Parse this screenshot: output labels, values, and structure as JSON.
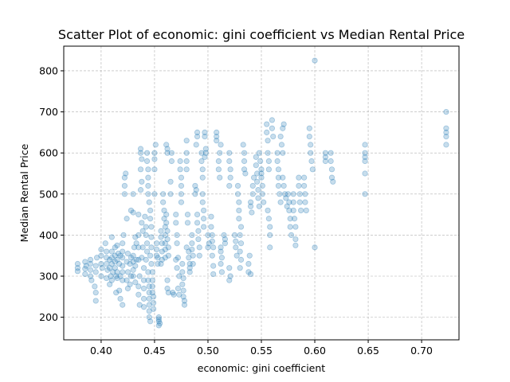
{
  "chart_data": {
    "type": "scatter",
    "title": "Scatter Plot of economic: gini coefficient vs Median Rental Price",
    "xlabel": "economic: gini coefficient",
    "ylabel": "Median Rental Price",
    "xlim": [
      0.365,
      0.735
    ],
    "ylim": [
      145,
      860
    ],
    "xticks": [
      0.4,
      0.45,
      0.5,
      0.55,
      0.6,
      0.65,
      0.7
    ],
    "xtick_labels": [
      "0.40",
      "0.45",
      "0.50",
      "0.55",
      "0.60",
      "0.65",
      "0.70"
    ],
    "yticks": [
      200,
      300,
      400,
      500,
      600,
      700,
      800
    ],
    "ytick_labels": [
      "200",
      "300",
      "400",
      "500",
      "600",
      "700",
      "800"
    ],
    "grid": true,
    "marker_color": "#1f77b4",
    "marker_alpha": 0.25,
    "points": [
      [
        0.378,
        330
      ],
      [
        0.378,
        320
      ],
      [
        0.378,
        312
      ],
      [
        0.385,
        335
      ],
      [
        0.385,
        318
      ],
      [
        0.385,
        305
      ],
      [
        0.386,
        325
      ],
      [
        0.39,
        340
      ],
      [
        0.39,
        315
      ],
      [
        0.39,
        300
      ],
      [
        0.391,
        290
      ],
      [
        0.39,
        330
      ],
      [
        0.395,
        310
      ],
      [
        0.395,
        325
      ],
      [
        0.394,
        275
      ],
      [
        0.395,
        260
      ],
      [
        0.395,
        240
      ],
      [
        0.396,
        345
      ],
      [
        0.4,
        330
      ],
      [
        0.4,
        350
      ],
      [
        0.4,
        300
      ],
      [
        0.401,
        320
      ],
      [
        0.4,
        365
      ],
      [
        0.405,
        345
      ],
      [
        0.405,
        330
      ],
      [
        0.406,
        315
      ],
      [
        0.405,
        295
      ],
      [
        0.404,
        380
      ],
      [
        0.405,
        360
      ],
      [
        0.408,
        320
      ],
      [
        0.408,
        340
      ],
      [
        0.409,
        300
      ],
      [
        0.408,
        280
      ],
      [
        0.41,
        345
      ],
      [
        0.41,
        330
      ],
      [
        0.41,
        360
      ],
      [
        0.411,
        310
      ],
      [
        0.41,
        290
      ],
      [
        0.41,
        395
      ],
      [
        0.413,
        335
      ],
      [
        0.413,
        320
      ],
      [
        0.413,
        350
      ],
      [
        0.414,
        300
      ],
      [
        0.413,
        370
      ],
      [
        0.414,
        260
      ],
      [
        0.415,
        340
      ],
      [
        0.415,
        310
      ],
      [
        0.415,
        295
      ],
      [
        0.415,
        375
      ],
      [
        0.416,
        355
      ],
      [
        0.417,
        330
      ],
      [
        0.418,
        350
      ],
      [
        0.418,
        300
      ],
      [
        0.418,
        245
      ],
      [
        0.417,
        265
      ],
      [
        0.42,
        345
      ],
      [
        0.42,
        325
      ],
      [
        0.42,
        310
      ],
      [
        0.42,
        290
      ],
      [
        0.42,
        230
      ],
      [
        0.42,
        380
      ],
      [
        0.421,
        400
      ],
      [
        0.42,
        360
      ],
      [
        0.422,
        520
      ],
      [
        0.422,
        540
      ],
      [
        0.422,
        500
      ],
      [
        0.423,
        550
      ],
      [
        0.424,
        335
      ],
      [
        0.425,
        310
      ],
      [
        0.424,
        290
      ],
      [
        0.425,
        355
      ],
      [
        0.425,
        270
      ],
      [
        0.424,
        440
      ],
      [
        0.427,
        330
      ],
      [
        0.428,
        345
      ],
      [
        0.428,
        300
      ],
      [
        0.427,
        280
      ],
      [
        0.428,
        460
      ],
      [
        0.43,
        335
      ],
      [
        0.43,
        315
      ],
      [
        0.43,
        350
      ],
      [
        0.43,
        300
      ],
      [
        0.431,
        370
      ],
      [
        0.43,
        455
      ],
      [
        0.43,
        500
      ],
      [
        0.432,
        325
      ],
      [
        0.433,
        340
      ],
      [
        0.432,
        395
      ],
      [
        0.433,
        380
      ],
      [
        0.432,
        285
      ],
      [
        0.435,
        450
      ],
      [
        0.435,
        400
      ],
      [
        0.435,
        370
      ],
      [
        0.435,
        340
      ],
      [
        0.436,
        300
      ],
      [
        0.435,
        275
      ],
      [
        0.435,
        255
      ],
      [
        0.436,
        230
      ],
      [
        0.437,
        610
      ],
      [
        0.437,
        600
      ],
      [
        0.438,
        585
      ],
      [
        0.437,
        560
      ],
      [
        0.438,
        530
      ],
      [
        0.437,
        510
      ],
      [
        0.438,
        430
      ],
      [
        0.439,
        410
      ],
      [
        0.439,
        370
      ],
      [
        0.438,
        345
      ],
      [
        0.44,
        320
      ],
      [
        0.44,
        290
      ],
      [
        0.44,
        270
      ],
      [
        0.44,
        245
      ],
      [
        0.44,
        225
      ],
      [
        0.441,
        445
      ],
      [
        0.442,
        420
      ],
      [
        0.442,
        400
      ],
      [
        0.443,
        380
      ],
      [
        0.443,
        360
      ],
      [
        0.442,
        340
      ],
      [
        0.444,
        310
      ],
      [
        0.444,
        290
      ],
      [
        0.445,
        275
      ],
      [
        0.445,
        260
      ],
      [
        0.445,
        245
      ],
      [
        0.445,
        230
      ],
      [
        0.445,
        215
      ],
      [
        0.445,
        200
      ],
      [
        0.446,
        190
      ],
      [
        0.443,
        600
      ],
      [
        0.443,
        580
      ],
      [
        0.444,
        560
      ],
      [
        0.444,
        540
      ],
      [
        0.444,
        520
      ],
      [
        0.444,
        500
      ],
      [
        0.445,
        480
      ],
      [
        0.446,
        460
      ],
      [
        0.446,
        440
      ],
      [
        0.447,
        420
      ],
      [
        0.447,
        395
      ],
      [
        0.447,
        370
      ],
      [
        0.446,
        350
      ],
      [
        0.447,
        330
      ],
      [
        0.448,
        310
      ],
      [
        0.448,
        290
      ],
      [
        0.448,
        275
      ],
      [
        0.448,
        260
      ],
      [
        0.449,
        250
      ],
      [
        0.449,
        235
      ],
      [
        0.449,
        220
      ],
      [
        0.45,
        600
      ],
      [
        0.45,
        585
      ],
      [
        0.45,
        560
      ],
      [
        0.45,
        500
      ],
      [
        0.451,
        620
      ],
      [
        0.452,
        380
      ],
      [
        0.452,
        365
      ],
      [
        0.453,
        345
      ],
      [
        0.453,
        330
      ],
      [
        0.452,
        350
      ],
      [
        0.454,
        200
      ],
      [
        0.454,
        195
      ],
      [
        0.454,
        190
      ],
      [
        0.455,
        185
      ],
      [
        0.454,
        180
      ],
      [
        0.456,
        410
      ],
      [
        0.456,
        395
      ],
      [
        0.457,
        380
      ],
      [
        0.457,
        360
      ],
      [
        0.457,
        340
      ],
      [
        0.456,
        330
      ],
      [
        0.458,
        500
      ],
      [
        0.458,
        480
      ],
      [
        0.459,
        460
      ],
      [
        0.459,
        440
      ],
      [
        0.46,
        420
      ],
      [
        0.46,
        400
      ],
      [
        0.46,
        380
      ],
      [
        0.46,
        365
      ],
      [
        0.46,
        345
      ],
      [
        0.461,
        450
      ],
      [
        0.461,
        430
      ],
      [
        0.462,
        410
      ],
      [
        0.462,
        390
      ],
      [
        0.463,
        370
      ],
      [
        0.463,
        350
      ],
      [
        0.462,
        290
      ],
      [
        0.462,
        270
      ],
      [
        0.463,
        260
      ],
      [
        0.461,
        620
      ],
      [
        0.462,
        600
      ],
      [
        0.462,
        610
      ],
      [
        0.465,
        500
      ],
      [
        0.465,
        530
      ],
      [
        0.466,
        580
      ],
      [
        0.466,
        600
      ],
      [
        0.467,
        260
      ],
      [
        0.468,
        255
      ],
      [
        0.47,
        450
      ],
      [
        0.47,
        430
      ],
      [
        0.471,
        400
      ],
      [
        0.471,
        380
      ],
      [
        0.47,
        340
      ],
      [
        0.471,
        320
      ],
      [
        0.472,
        345
      ],
      [
        0.472,
        270
      ],
      [
        0.473,
        255
      ],
      [
        0.473,
        300
      ],
      [
        0.474,
        580
      ],
      [
        0.474,
        560
      ],
      [
        0.475,
        540
      ],
      [
        0.475,
        520
      ],
      [
        0.475,
        500
      ],
      [
        0.475,
        480
      ],
      [
        0.476,
        330
      ],
      [
        0.476,
        310
      ],
      [
        0.477,
        295
      ],
      [
        0.476,
        280
      ],
      [
        0.477,
        265
      ],
      [
        0.477,
        250
      ],
      [
        0.478,
        240
      ],
      [
        0.478,
        230
      ],
      [
        0.48,
        630
      ],
      [
        0.48,
        600
      ],
      [
        0.48,
        580
      ],
      [
        0.48,
        560
      ],
      [
        0.481,
        450
      ],
      [
        0.481,
        430
      ],
      [
        0.48,
        370
      ],
      [
        0.482,
        360
      ],
      [
        0.482,
        345
      ],
      [
        0.483,
        330
      ],
      [
        0.483,
        320
      ],
      [
        0.483,
        310
      ],
      [
        0.485,
        380
      ],
      [
        0.485,
        365
      ],
      [
        0.486,
        350
      ],
      [
        0.486,
        330
      ],
      [
        0.485,
        400
      ],
      [
        0.488,
        500
      ],
      [
        0.488,
        520
      ],
      [
        0.489,
        510
      ],
      [
        0.489,
        620
      ],
      [
        0.49,
        640
      ],
      [
        0.49,
        650
      ],
      [
        0.49,
        450
      ],
      [
        0.49,
        430
      ],
      [
        0.491,
        410
      ],
      [
        0.491,
        390
      ],
      [
        0.492,
        370
      ],
      [
        0.492,
        350
      ],
      [
        0.494,
        600
      ],
      [
        0.494,
        580
      ],
      [
        0.495,
        560
      ],
      [
        0.495,
        540
      ],
      [
        0.495,
        500
      ],
      [
        0.495,
        480
      ],
      [
        0.496,
        460
      ],
      [
        0.496,
        440
      ],
      [
        0.496,
        420
      ],
      [
        0.497,
        650
      ],
      [
        0.497,
        640
      ],
      [
        0.498,
        610
      ],
      [
        0.498,
        600
      ],
      [
        0.497,
        590
      ],
      [
        0.5,
        370
      ],
      [
        0.5,
        400
      ],
      [
        0.501,
        380
      ],
      [
        0.503,
        445
      ],
      [
        0.503,
        420
      ],
      [
        0.504,
        400
      ],
      [
        0.504,
        385
      ],
      [
        0.505,
        370
      ],
      [
        0.504,
        350
      ],
      [
        0.505,
        325
      ],
      [
        0.505,
        305
      ],
      [
        0.508,
        650
      ],
      [
        0.508,
        640
      ],
      [
        0.508,
        630
      ],
      [
        0.51,
        560
      ],
      [
        0.51,
        580
      ],
      [
        0.511,
        600
      ],
      [
        0.512,
        620
      ],
      [
        0.511,
        540
      ],
      [
        0.512,
        370
      ],
      [
        0.512,
        360
      ],
      [
        0.513,
        345
      ],
      [
        0.512,
        330
      ],
      [
        0.513,
        310
      ],
      [
        0.515,
        400
      ],
      [
        0.516,
        390
      ],
      [
        0.516,
        380
      ],
      [
        0.52,
        600
      ],
      [
        0.52,
        580
      ],
      [
        0.521,
        560
      ],
      [
        0.521,
        540
      ],
      [
        0.52,
        520
      ],
      [
        0.52,
        320
      ],
      [
        0.521,
        300
      ],
      [
        0.52,
        290
      ],
      [
        0.525,
        400
      ],
      [
        0.526,
        385
      ],
      [
        0.526,
        370
      ],
      [
        0.527,
        350
      ],
      [
        0.528,
        520
      ],
      [
        0.528,
        500
      ],
      [
        0.529,
        480
      ],
      [
        0.529,
        460
      ],
      [
        0.529,
        440
      ],
      [
        0.53,
        400
      ],
      [
        0.531,
        420
      ],
      [
        0.531,
        380
      ],
      [
        0.53,
        360
      ],
      [
        0.531,
        340
      ],
      [
        0.53,
        320
      ],
      [
        0.533,
        620
      ],
      [
        0.534,
        600
      ],
      [
        0.534,
        580
      ],
      [
        0.534,
        560
      ],
      [
        0.535,
        550
      ],
      [
        0.538,
        310
      ],
      [
        0.538,
        330
      ],
      [
        0.539,
        350
      ],
      [
        0.54,
        305
      ],
      [
        0.54,
        480
      ],
      [
        0.54,
        470
      ],
      [
        0.541,
        455
      ],
      [
        0.542,
        500
      ],
      [
        0.542,
        520
      ],
      [
        0.543,
        540
      ],
      [
        0.545,
        590
      ],
      [
        0.545,
        570
      ],
      [
        0.546,
        550
      ],
      [
        0.546,
        530
      ],
      [
        0.547,
        510
      ],
      [
        0.547,
        490
      ],
      [
        0.548,
        470
      ],
      [
        0.548,
        600
      ],
      [
        0.549,
        580
      ],
      [
        0.55,
        560
      ],
      [
        0.55,
        550
      ],
      [
        0.55,
        540
      ],
      [
        0.551,
        520
      ],
      [
        0.551,
        500
      ],
      [
        0.552,
        480
      ],
      [
        0.555,
        670
      ],
      [
        0.555,
        650
      ],
      [
        0.556,
        630
      ],
      [
        0.556,
        600
      ],
      [
        0.557,
        580
      ],
      [
        0.557,
        560
      ],
      [
        0.556,
        460
      ],
      [
        0.557,
        440
      ],
      [
        0.558,
        420
      ],
      [
        0.558,
        400
      ],
      [
        0.558,
        370
      ],
      [
        0.56,
        680
      ],
      [
        0.56,
        660
      ],
      [
        0.561,
        640
      ],
      [
        0.565,
        600
      ],
      [
        0.565,
        580
      ],
      [
        0.566,
        560
      ],
      [
        0.566,
        540
      ],
      [
        0.566,
        520
      ],
      [
        0.567,
        500
      ],
      [
        0.568,
        480
      ],
      [
        0.568,
        640
      ],
      [
        0.569,
        620
      ],
      [
        0.57,
        600
      ],
      [
        0.57,
        660
      ],
      [
        0.571,
        670
      ],
      [
        0.57,
        540
      ],
      [
        0.571,
        520
      ],
      [
        0.572,
        500
      ],
      [
        0.573,
        490
      ],
      [
        0.574,
        470
      ],
      [
        0.575,
        500
      ],
      [
        0.576,
        480
      ],
      [
        0.576,
        460
      ],
      [
        0.577,
        440
      ],
      [
        0.577,
        420
      ],
      [
        0.578,
        400
      ],
      [
        0.58,
        500
      ],
      [
        0.58,
        480
      ],
      [
        0.58,
        460
      ],
      [
        0.581,
        440
      ],
      [
        0.582,
        420
      ],
      [
        0.582,
        390
      ],
      [
        0.582,
        375
      ],
      [
        0.585,
        540
      ],
      [
        0.585,
        520
      ],
      [
        0.586,
        500
      ],
      [
        0.586,
        480
      ],
      [
        0.587,
        460
      ],
      [
        0.59,
        540
      ],
      [
        0.59,
        520
      ],
      [
        0.591,
        500
      ],
      [
        0.591,
        480
      ],
      [
        0.592,
        460
      ],
      [
        0.595,
        660
      ],
      [
        0.595,
        640
      ],
      [
        0.596,
        620
      ],
      [
        0.596,
        600
      ],
      [
        0.597,
        580
      ],
      [
        0.598,
        560
      ],
      [
        0.6,
        825
      ],
      [
        0.6,
        370
      ],
      [
        0.61,
        600
      ],
      [
        0.61,
        590
      ],
      [
        0.61,
        580
      ],
      [
        0.615,
        600
      ],
      [
        0.615,
        580
      ],
      [
        0.616,
        560
      ],
      [
        0.616,
        540
      ],
      [
        0.617,
        530
      ],
      [
        0.647,
        620
      ],
      [
        0.647,
        600
      ],
      [
        0.647,
        590
      ],
      [
        0.647,
        580
      ],
      [
        0.647,
        550
      ],
      [
        0.647,
        500
      ],
      [
        0.723,
        700
      ],
      [
        0.723,
        660
      ],
      [
        0.723,
        650
      ],
      [
        0.723,
        640
      ],
      [
        0.723,
        620
      ]
    ]
  }
}
